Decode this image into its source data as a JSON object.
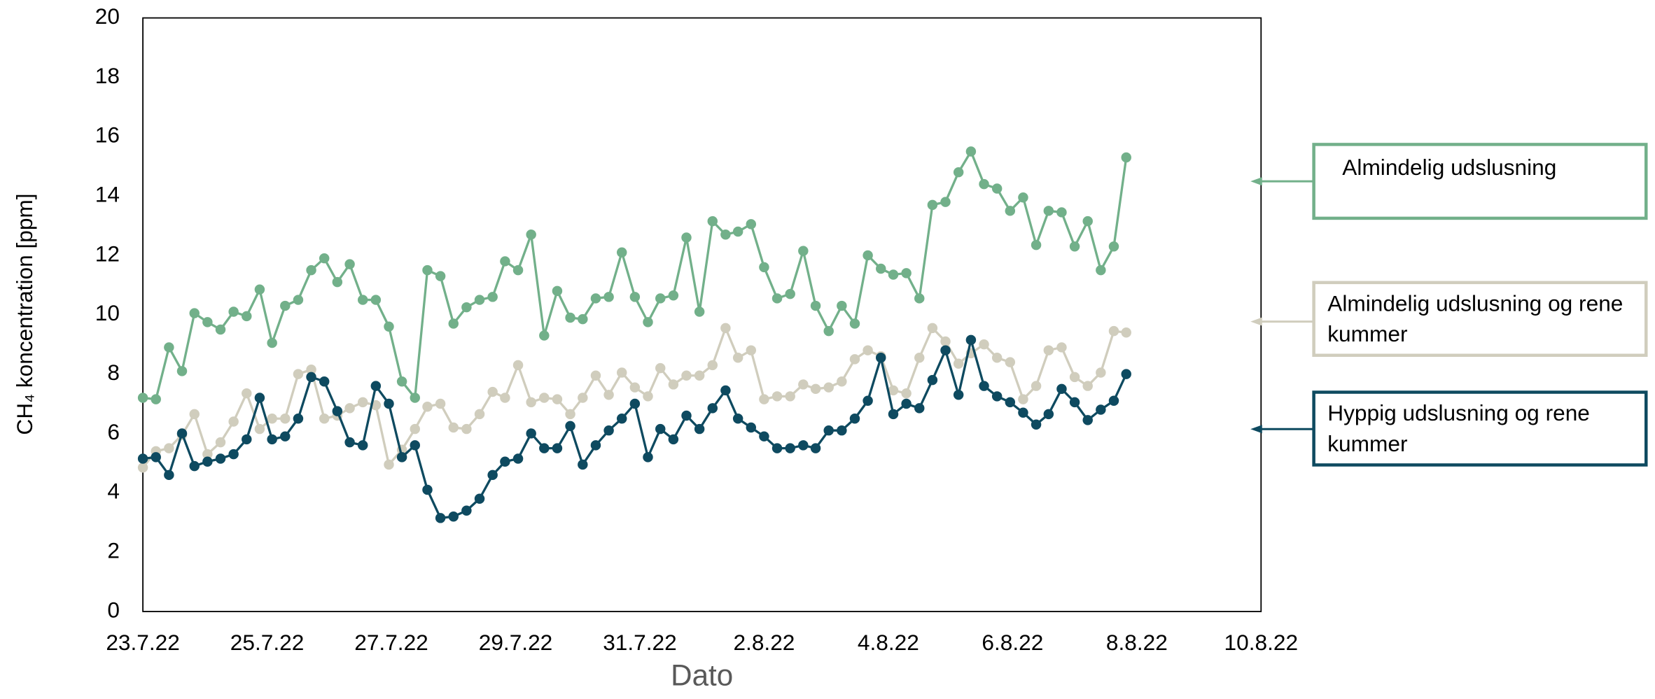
{
  "chart_data": {
    "type": "line",
    "y_label": "CH₄ koncentration [ppm]",
    "x_label": "Dato",
    "x": [
      0,
      0.21,
      0.42,
      0.63,
      0.83,
      1.04,
      1.25,
      1.46,
      1.67,
      1.88,
      2.08,
      2.29,
      2.5,
      2.71,
      2.92,
      3.13,
      3.33,
      3.54,
      3.75,
      3.96,
      4.17,
      4.38,
      4.58,
      4.79,
      5,
      5.21,
      5.42,
      5.63,
      5.83,
      6.04,
      6.25,
      6.46,
      6.67,
      6.88,
      7.08,
      7.29,
      7.5,
      7.71,
      7.92,
      8.13,
      8.33,
      8.54,
      8.75,
      8.96,
      9.17,
      9.38,
      9.58,
      9.79,
      10,
      10.21,
      10.42,
      10.63,
      10.83,
      11.04,
      11.25,
      11.46,
      11.67,
      11.88,
      12.08,
      12.29,
      12.5,
      12.71,
      12.92,
      13.13,
      13.33,
      13.54,
      13.75,
      13.96,
      14.17,
      14.38,
      14.58,
      14.79,
      15,
      15.21,
      15.42,
      15.63,
      15.83
    ],
    "xlim": [
      0,
      18
    ],
    "xticks": [
      {
        "value": 0,
        "label": "23.7.22"
      },
      {
        "value": 2,
        "label": "25.7.22"
      },
      {
        "value": 4,
        "label": "27.7.22"
      },
      {
        "value": 6,
        "label": "29.7.22"
      },
      {
        "value": 8,
        "label": "31.7.22"
      },
      {
        "value": 10,
        "label": "2.8.22"
      },
      {
        "value": 12,
        "label": "4.8.22"
      },
      {
        "value": 14,
        "label": "6.8.22"
      },
      {
        "value": 16,
        "label": "8.8.22"
      },
      {
        "value": 18,
        "label": "10.8.22"
      }
    ],
    "ylim": [
      0,
      20
    ],
    "yticks": [
      0,
      2,
      4,
      6,
      8,
      10,
      12,
      14,
      16,
      18,
      20
    ],
    "grid": false,
    "series": [
      {
        "name": "Almindelig udslusning",
        "color": "#72b08a",
        "values": [
          7.2,
          7.15,
          8.9,
          8.1,
          10.05,
          9.75,
          9.5,
          10.1,
          9.95,
          10.85,
          9.05,
          10.3,
          10.5,
          11.5,
          11.9,
          11.1,
          11.7,
          10.5,
          10.5,
          9.6,
          7.75,
          7.2,
          11.5,
          11.3,
          9.7,
          10.25,
          10.5,
          10.6,
          11.8,
          11.5,
          12.7,
          9.3,
          10.8,
          9.9,
          9.85,
          10.55,
          10.6,
          12.1,
          10.6,
          9.75,
          10.55,
          10.65,
          12.6,
          10.1,
          13.15,
          12.7,
          12.8,
          13.05,
          11.6,
          10.55,
          10.7,
          12.15,
          10.3,
          9.45,
          10.3,
          9.7,
          12.0,
          11.55,
          11.35,
          11.4,
          10.55,
          13.7,
          13.8,
          14.8,
          15.5,
          14.4,
          14.25,
          13.5,
          13.95,
          12.35,
          13.5,
          13.45,
          12.3,
          13.15,
          11.5,
          12.3,
          15.3
        ]
      },
      {
        "name": "Almindelig udslusning og rene kummer",
        "color": "#d0cdbd",
        "values": [
          4.85,
          5.4,
          5.5,
          5.95,
          6.65,
          5.3,
          5.7,
          6.4,
          7.35,
          6.15,
          6.5,
          6.5,
          8.0,
          8.15,
          6.5,
          6.6,
          6.85,
          7.05,
          6.95,
          4.95,
          5.45,
          6.15,
          6.9,
          7.0,
          6.2,
          6.15,
          6.65,
          7.4,
          7.2,
          8.3,
          7.05,
          7.2,
          7.15,
          6.65,
          7.2,
          7.95,
          7.3,
          8.05,
          7.55,
          7.25,
          8.2,
          7.65,
          7.95,
          7.95,
          8.3,
          9.55,
          8.55,
          8.8,
          7.15,
          7.25,
          7.25,
          7.65,
          7.5,
          7.55,
          7.75,
          8.5,
          8.8,
          8.6,
          7.45,
          7.35,
          8.55,
          9.55,
          9.1,
          8.35,
          8.7,
          9.0,
          8.55,
          8.4,
          7.15,
          7.6,
          8.8,
          8.9,
          7.9,
          7.6,
          8.05,
          9.45,
          9.4
        ]
      },
      {
        "name": "Hyppig udslusning og rene kummer",
        "color": "#0e4a60",
        "values": [
          5.15,
          5.2,
          4.6,
          6.0,
          4.9,
          5.05,
          5.15,
          5.3,
          5.8,
          7.2,
          5.8,
          5.9,
          6.5,
          7.9,
          7.75,
          6.75,
          5.7,
          5.6,
          7.6,
          7.0,
          5.2,
          5.6,
          4.1,
          3.15,
          3.2,
          3.4,
          3.8,
          4.6,
          5.05,
          5.15,
          6.0,
          5.5,
          5.5,
          6.25,
          4.95,
          5.6,
          6.1,
          6.5,
          7.0,
          5.2,
          6.15,
          5.8,
          6.6,
          6.15,
          6.85,
          7.45,
          6.5,
          6.2,
          5.9,
          5.5,
          5.5,
          5.6,
          5.5,
          6.1,
          6.1,
          6.5,
          7.1,
          8.55,
          6.65,
          7.0,
          6.85,
          7.8,
          8.8,
          7.3,
          9.15,
          7.6,
          7.25,
          7.05,
          6.7,
          6.3,
          6.65,
          7.5,
          7.05,
          6.45,
          6.8,
          7.1,
          8.0
        ]
      }
    ]
  }
}
